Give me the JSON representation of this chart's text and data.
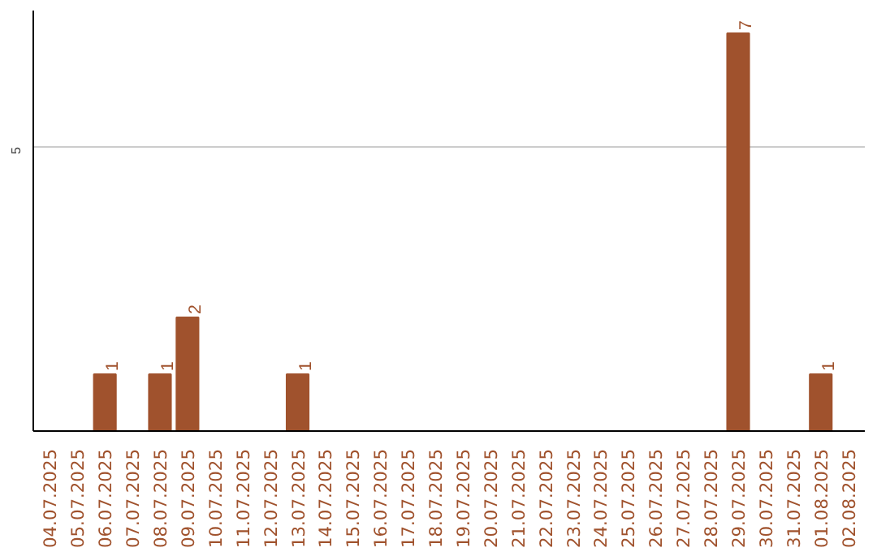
{
  "chart_data": {
    "type": "bar",
    "categories": [
      "04.07.2025",
      "05.07.2025",
      "06.07.2025",
      "07.07.2025",
      "08.07.2025",
      "09.07.2025",
      "10.07.2025",
      "11.07.2025",
      "12.07.2025",
      "13.07.2025",
      "14.07.2025",
      "15.07.2025",
      "16.07.2025",
      "17.07.2025",
      "18.07.2025",
      "19.07.2025",
      "20.07.2025",
      "21.07.2025",
      "22.07.2025",
      "23.07.2025",
      "24.07.2025",
      "25.07.2025",
      "26.07.2025",
      "27.07.2025",
      "28.07.2025",
      "29.07.2025",
      "30.07.2025",
      "31.07.2025",
      "01.08.2025",
      "02.08.2025"
    ],
    "values": [
      0,
      0,
      1,
      0,
      1,
      2,
      0,
      0,
      0,
      1,
      0,
      0,
      0,
      0,
      0,
      0,
      0,
      0,
      0,
      0,
      0,
      0,
      0,
      0,
      0,
      7,
      0,
      0,
      1,
      0
    ],
    "value_labels": [
      null,
      null,
      "1",
      null,
      "1",
      "2",
      null,
      null,
      null,
      "1",
      null,
      null,
      null,
      null,
      null,
      null,
      null,
      null,
      null,
      null,
      null,
      null,
      null,
      null,
      null,
      "7",
      null,
      null,
      "1",
      null
    ],
    "color": "#a0522d",
    "ylim": [
      0,
      7.4
    ],
    "yticks": [
      5
    ],
    "grid": "y"
  }
}
